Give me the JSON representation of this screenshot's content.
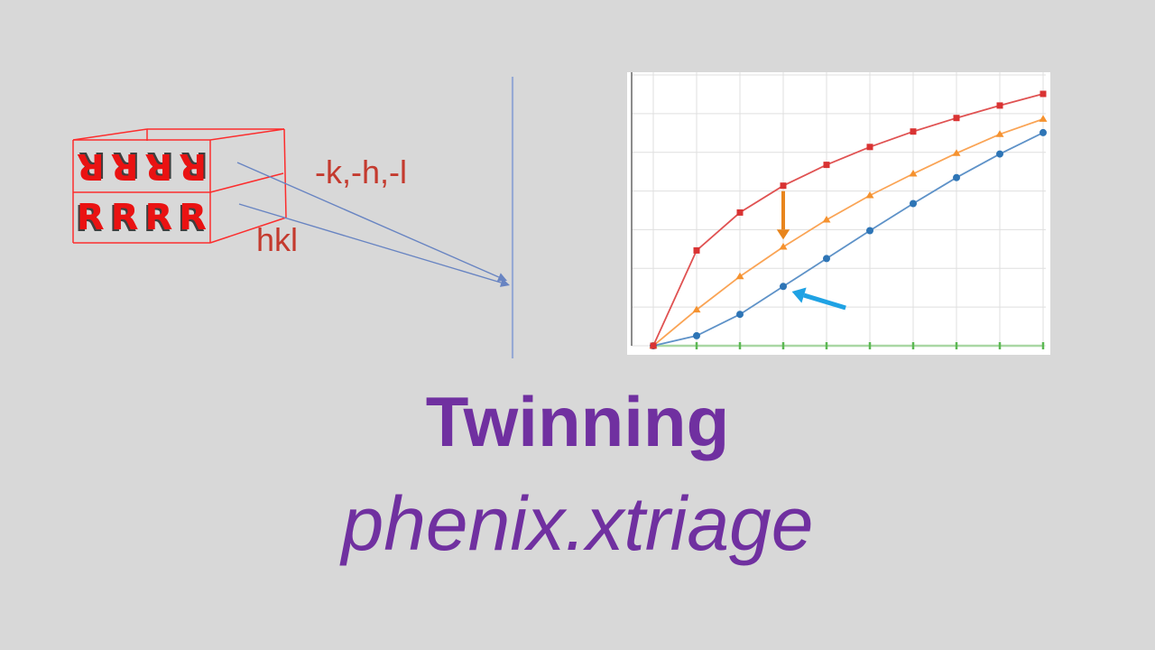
{
  "slide": {
    "background_color": "#D8D8D8",
    "title": "Twinning",
    "subtitle": "phenix.xtriage",
    "title_color": "#7030A0"
  },
  "twin_diagram": {
    "top_layer_text": "RRRR",
    "bottom_layer_text": "RRRR",
    "label_twin_indices": "-k,-h,-l",
    "label_indices": "hkl",
    "box_outline_color": "#FC2D2D",
    "letter_color": "#EA1212",
    "label_color": "#C43A2E",
    "arrow_color": "#6884C2",
    "vertical_line_color": "#96A9D4"
  },
  "chart_data": {
    "type": "line",
    "title": "",
    "xlabel": "",
    "ylabel": "",
    "axis_labels_visible": false,
    "x_index": [
      0,
      1,
      2,
      3,
      4,
      5,
      6,
      7,
      8,
      9
    ],
    "ylim": [
      0,
      1
    ],
    "grid": {
      "vertical_lines": 10,
      "horizontal_lines": 8,
      "color": "#DFDFDF"
    },
    "plot_bg": "#FFFFFF",
    "axis_color": "#707070",
    "series": [
      {
        "name": "green-baseline",
        "marker": "tick",
        "line_color": "#A9D7A4",
        "marker_color": "#5CB853",
        "values": [
          0,
          0,
          0,
          0,
          0,
          0,
          0,
          0,
          0,
          0
        ]
      },
      {
        "name": "blue-circles",
        "marker": "circle",
        "line_color": "#5E92C8",
        "marker_color": "#2E75B6",
        "values": [
          0,
          0.037,
          0.116,
          0.219,
          0.322,
          0.425,
          0.525,
          0.621,
          0.708,
          0.787
        ]
      },
      {
        "name": "orange-triangles",
        "marker": "triangle",
        "line_color": "#FAA455",
        "marker_color": "#F5922F",
        "values": [
          0,
          0.133,
          0.256,
          0.365,
          0.465,
          0.555,
          0.635,
          0.711,
          0.781,
          0.837
        ]
      },
      {
        "name": "red-squares",
        "marker": "square",
        "line_color": "#E05252",
        "marker_color": "#D93333",
        "values": [
          0,
          0.352,
          0.492,
          0.591,
          0.668,
          0.734,
          0.791,
          0.841,
          0.887,
          0.93
        ]
      }
    ],
    "annotations": [
      {
        "name": "orange-down-arrow",
        "color": "#E8851D",
        "from": {
          "x": 3,
          "v": 0.571
        },
        "to": {
          "x": 3,
          "v": 0.392
        },
        "width": 4
      },
      {
        "name": "blue-callout-arrow",
        "color": "#1FA2E4",
        "from": {
          "x": 4.44,
          "v": 0.14
        },
        "to": {
          "x": 3.2,
          "v": 0.2
        },
        "width": 5
      }
    ],
    "legend_visible": false
  }
}
